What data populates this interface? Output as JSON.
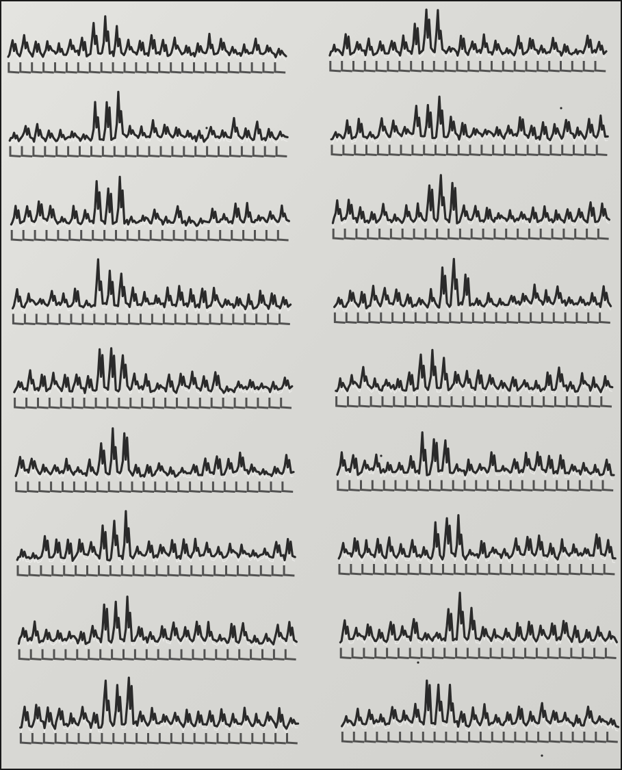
{
  "image": {
    "kind": "photograph",
    "subject": "multiple-trace-recording",
    "colors": {
      "paper": "#d9d9d5",
      "paper_light": "#e6e6e2",
      "ink": "#2a2a2a",
      "frame": "#1a1a1a"
    }
  },
  "layout": {
    "columns": 2,
    "rows_per_column": 9,
    "beats_per_row_left": 24,
    "beats_per_row_right": 24
  }
}
